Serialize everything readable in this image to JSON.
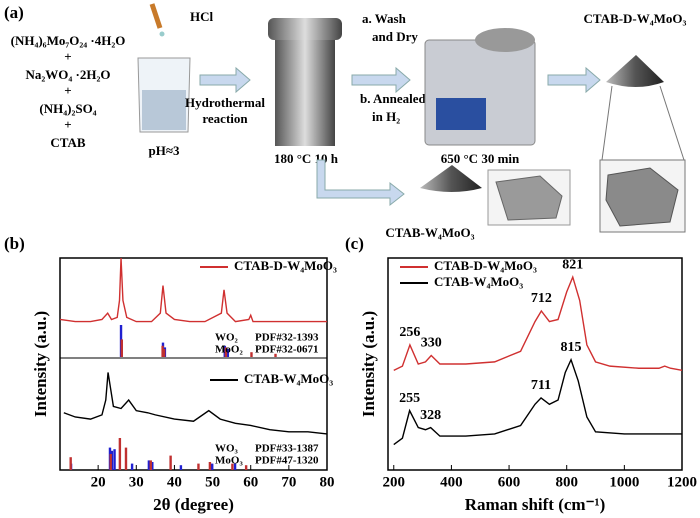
{
  "scheme": {
    "label": "(a)",
    "acid": "HCl",
    "reagents": [
      "(NH₄)₆Mo₇O₂₄ ·4H₂O",
      "+",
      "Na₂WO₄ ·2H₂O",
      "+",
      "(NH₄)₂SO₄",
      "+",
      "CTAB"
    ],
    "ph": "pH≈3",
    "step1": [
      "Hydrothermal",
      "reaction"
    ],
    "autoclave": "180 °C 10 h",
    "step2a": [
      "a.  Wash",
      "and Dry"
    ],
    "step2b": [
      "b. Annealed",
      "in H₂"
    ],
    "furnace": "650 °C 30 min",
    "product_annealed": "CTAB-D-W₄MoO₃",
    "product_direct": "CTAB-W₄MoO₃"
  },
  "chart_data": [
    {
      "type": "line",
      "panel_label": "(b)",
      "xlabel": "2θ (degree)",
      "ylabel": "Intensity (a.u.)",
      "xlim": [
        10,
        80
      ],
      "ylim": [
        0,
        100
      ],
      "xticks": [
        20,
        30,
        40,
        50,
        60,
        70,
        80
      ],
      "series": [
        {
          "name": "CTAB-D-W₄MoO₃",
          "color": "#d03030",
          "x": [
            10,
            14,
            18,
            21,
            22.5,
            23.5,
            25,
            25.6,
            26,
            26.5,
            27.5,
            30,
            34,
            36.3,
            37,
            37.8,
            40,
            44,
            48,
            52.3,
            53,
            53.8,
            56,
            59.5,
            60,
            60.6,
            64,
            70,
            76,
            80
          ],
          "values": [
            71,
            70,
            70,
            71,
            74,
            71,
            72,
            80,
            100,
            80,
            72,
            70,
            70,
            74,
            87,
            74,
            71,
            70,
            70,
            74,
            85,
            74,
            70,
            71,
            73,
            70,
            70,
            70,
            70,
            70
          ]
        },
        {
          "name": "CTAB-W₄MoO₃",
          "color": "#000000",
          "x": [
            11,
            14,
            18,
            21,
            22,
            22.6,
            23.3,
            24,
            26,
            28,
            30,
            33,
            35,
            40,
            45,
            49,
            52,
            56,
            60,
            65,
            70,
            75,
            80
          ],
          "values": [
            27,
            25,
            24,
            26,
            33,
            46,
            38,
            30,
            29,
            33,
            28,
            27,
            26,
            24,
            23,
            28,
            24,
            22,
            21,
            19,
            18,
            18,
            17
          ]
        }
      ],
      "references": [
        {
          "name": "WO₂",
          "pdf": "PDF#32-1393",
          "color": "#2020d0",
          "x": [
            26.0,
            37.0,
            37.5,
            53.2,
            54.0
          ],
          "values": [
            100,
            45,
            30,
            35,
            25
          ]
        },
        {
          "name": "MoO₂",
          "pdf": "PDF#32-0671",
          "color": "#c03030",
          "x": [
            26.2,
            36.9,
            37.3,
            53.5,
            60.2,
            66.5
          ],
          "values": [
            55,
            35,
            25,
            30,
            15,
            10
          ]
        },
        {
          "name": "WO₃",
          "pdf": "PDF#33-1387",
          "color": "#2020d0",
          "x": [
            12.9,
            23.1,
            23.6,
            24.3,
            28.9,
            33.3,
            34.2,
            41.7,
            49.9,
            55.9
          ],
          "values": [
            20,
            70,
            60,
            65,
            20,
            30,
            25,
            15,
            20,
            20
          ]
        },
        {
          "name": "MoO₃",
          "pdf": "PDF#47-1320",
          "color": "#c03030",
          "x": [
            12.8,
            23.3,
            25.7,
            27.3,
            33.8,
            39.0,
            46.3,
            49.3,
            55.2,
            58.8
          ],
          "values": [
            40,
            50,
            100,
            70,
            30,
            45,
            20,
            25,
            20,
            15
          ]
        }
      ]
    },
    {
      "type": "line",
      "panel_label": "(c)",
      "xlabel": "Raman shift (cm⁻¹)",
      "ylabel": "Intensity (a.u.)",
      "xlim": [
        180,
        1200
      ],
      "ylim": [
        0,
        100
      ],
      "xticks": [
        200,
        400,
        600,
        800,
        1000,
        1200
      ],
      "series": [
        {
          "name": "CTAB-D-W₄MoO₃",
          "color": "#d03030",
          "x": [
            200,
            230,
            256,
            285,
            310,
            330,
            360,
            450,
            550,
            640,
            690,
            712,
            740,
            770,
            800,
            821,
            845,
            870,
            900,
            950,
            1050,
            1120,
            1140,
            1160,
            1200
          ],
          "values": [
            47,
            49,
            59,
            50,
            51,
            54,
            50,
            50,
            51,
            56,
            70,
            75,
            70,
            71,
            84,
            91,
            80,
            59,
            51,
            49,
            48,
            48,
            49,
            48,
            47
          ]
        },
        {
          "name": "CTAB-W₄MoO₃",
          "color": "#000000",
          "x": [
            200,
            230,
            255,
            285,
            310,
            328,
            360,
            450,
            550,
            640,
            690,
            711,
            740,
            770,
            795,
            815,
            840,
            870,
            900,
            1000,
            1100,
            1200
          ],
          "values": [
            12,
            15,
            28,
            20,
            19,
            20,
            16,
            16,
            17,
            21,
            31,
            34,
            31,
            33,
            46,
            52,
            42,
            25,
            18,
            17,
            17,
            17
          ]
        }
      ],
      "annotations": [
        {
          "text": "256",
          "x": 256,
          "y": 59
        },
        {
          "text": "330",
          "x": 330,
          "y": 54
        },
        {
          "text": "712",
          "x": 712,
          "y": 75
        },
        {
          "text": "821",
          "x": 821,
          "y": 91
        },
        {
          "text": "255",
          "x": 255,
          "y": 28
        },
        {
          "text": "328",
          "x": 328,
          "y": 20
        },
        {
          "text": "711",
          "x": 711,
          "y": 34
        },
        {
          "text": "815",
          "x": 815,
          "y": 52
        }
      ]
    }
  ]
}
